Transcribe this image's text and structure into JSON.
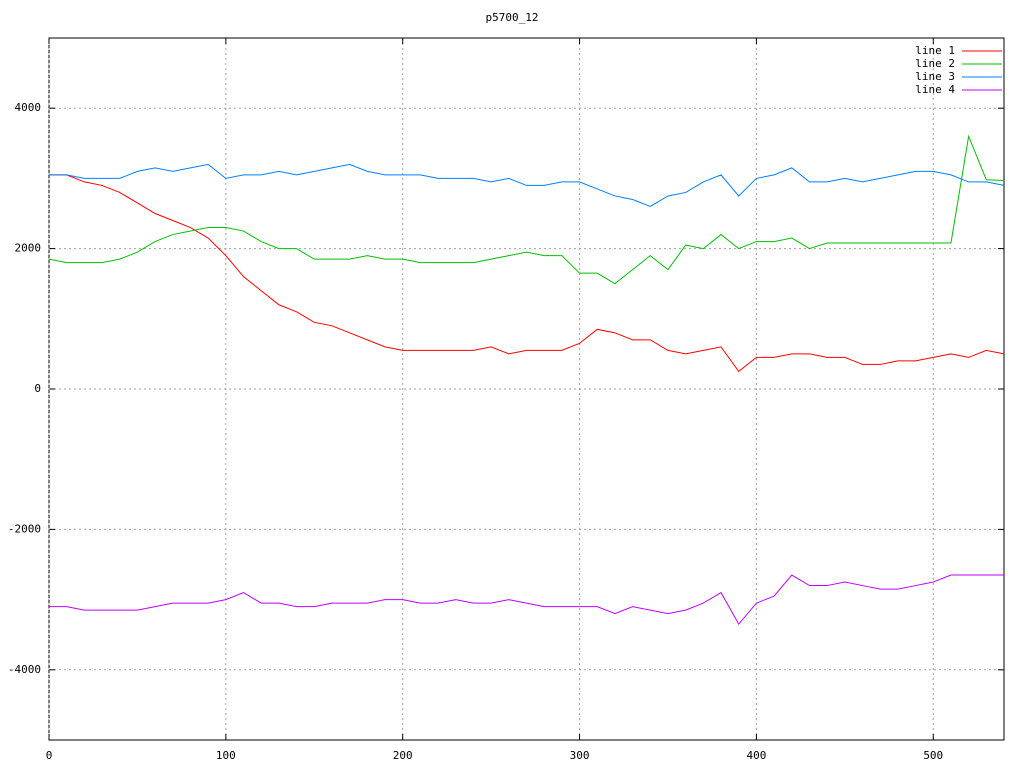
{
  "chart_data": {
    "type": "line",
    "title": "p5700_12",
    "x": [
      0,
      10,
      20,
      30,
      40,
      50,
      60,
      70,
      80,
      90,
      100,
      110,
      120,
      130,
      140,
      150,
      160,
      170,
      180,
      190,
      200,
      210,
      220,
      230,
      240,
      250,
      260,
      270,
      280,
      290,
      300,
      310,
      320,
      330,
      340,
      350,
      360,
      370,
      380,
      390,
      400,
      410,
      420,
      430,
      440,
      450,
      460,
      470,
      480,
      490,
      500,
      510,
      520,
      530,
      540
    ],
    "series": [
      {
        "name": "line 1",
        "color": "#ff0000",
        "values": [
          3050,
          3050,
          2950,
          2900,
          2800,
          2650,
          2500,
          2400,
          2300,
          2150,
          1900,
          1600,
          1400,
          1200,
          1100,
          950,
          900,
          800,
          700,
          600,
          550,
          550,
          550,
          550,
          550,
          600,
          500,
          550,
          550,
          550,
          650,
          850,
          800,
          700,
          700,
          550,
          500,
          550,
          600,
          250,
          450,
          450,
          500,
          500,
          450,
          450,
          350,
          350,
          400,
          400,
          450,
          500,
          450,
          550,
          500
        ]
      },
      {
        "name": "line 2",
        "color": "#00c000",
        "values": [
          1850,
          1800,
          1800,
          1800,
          1850,
          1950,
          2100,
          2200,
          2250,
          2300,
          2300,
          2250,
          2100,
          2000,
          2000,
          1850,
          1850,
          1850,
          1900,
          1850,
          1850,
          1800,
          1800,
          1800,
          1800,
          1850,
          1900,
          1950,
          1900,
          1900,
          1650,
          1650,
          1500,
          1700,
          1900,
          1700,
          2050,
          2000,
          2200,
          2000,
          2100,
          2100,
          2150,
          2000,
          2080,
          2080,
          2080,
          2080,
          2080,
          2080,
          2080,
          2080,
          3600,
          2980,
          2970
        ]
      },
      {
        "name": "line 3",
        "color": "#0080ff",
        "values": [
          3050,
          3050,
          3000,
          3000,
          3000,
          3100,
          3150,
          3100,
          3150,
          3200,
          3000,
          3050,
          3050,
          3100,
          3050,
          3100,
          3150,
          3200,
          3100,
          3050,
          3050,
          3050,
          3000,
          3000,
          3000,
          2950,
          3000,
          2900,
          2900,
          2950,
          2950,
          2850,
          2750,
          2700,
          2600,
          2750,
          2800,
          2950,
          3050,
          2750,
          3000,
          3050,
          3150,
          2950,
          2950,
          3000,
          2950,
          3000,
          3050,
          3100,
          3100,
          3050,
          2950,
          2950,
          2900
        ]
      },
      {
        "name": "line 4",
        "color": "#c000ff",
        "values": [
          -3100,
          -3100,
          -3150,
          -3150,
          -3150,
          -3150,
          -3100,
          -3050,
          -3050,
          -3050,
          -3000,
          -2900,
          -3050,
          -3050,
          -3100,
          -3100,
          -3050,
          -3050,
          -3050,
          -3000,
          -3000,
          -3050,
          -3050,
          -3000,
          -3050,
          -3050,
          -3000,
          -3050,
          -3100,
          -3100,
          -3100,
          -3100,
          -3200,
          -3100,
          -3150,
          -3200,
          -3150,
          -3050,
          -2900,
          -3350,
          -3050,
          -2950,
          -2650,
          -2800,
          -2800,
          -2750,
          -2800,
          -2850,
          -2850,
          -2800,
          -2750,
          -2650,
          -2650,
          -2650,
          -2650
        ]
      }
    ],
    "xlim": [
      0,
      540
    ],
    "ylim": [
      -5000,
      5000
    ],
    "xticks": [
      0,
      100,
      200,
      300,
      400,
      500
    ],
    "yticks": [
      -4000,
      -2000,
      0,
      2000,
      4000
    ],
    "grid": true,
    "legend": "top-right"
  }
}
